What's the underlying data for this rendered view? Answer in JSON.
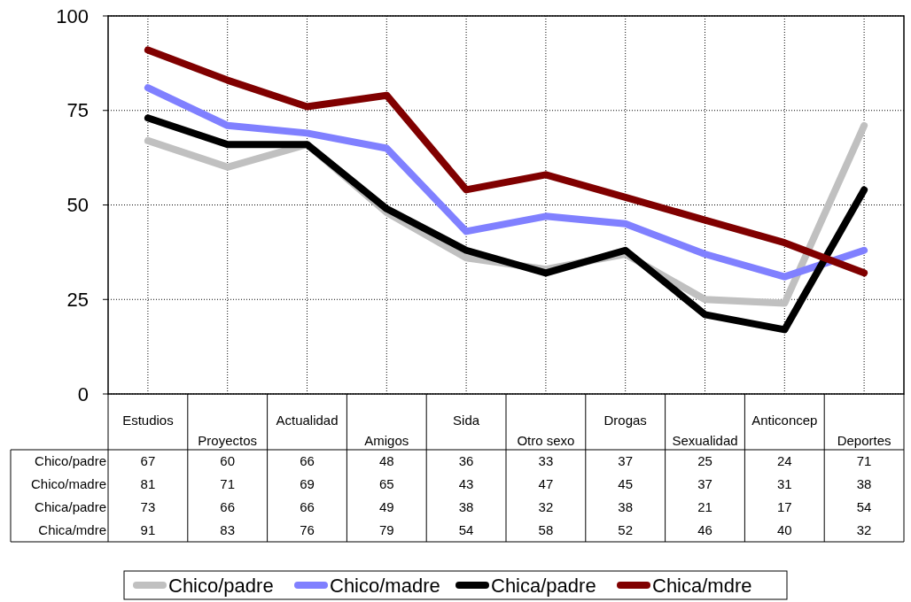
{
  "chart_data": {
    "type": "line",
    "categories": [
      "Estudios",
      "Proyectos",
      "Actualidad",
      "Amigos",
      "Sida",
      "Otro sexo",
      "Drogas",
      "Sexualidad",
      "Anticoncep",
      "Deportes"
    ],
    "series": [
      {
        "name": "Chico/padre",
        "color": "#c0c0c0",
        "values": [
          67,
          60,
          66,
          48,
          36,
          33,
          37,
          25,
          24,
          71
        ]
      },
      {
        "name": "Chico/madre",
        "color": "#8080ff",
        "values": [
          81,
          71,
          69,
          65,
          43,
          47,
          45,
          37,
          31,
          38
        ]
      },
      {
        "name": "Chica/padre",
        "color": "#000000",
        "values": [
          73,
          66,
          66,
          49,
          38,
          32,
          38,
          21,
          17,
          54
        ]
      },
      {
        "name": "Chica/mdre",
        "color": "#800000",
        "values": [
          91,
          83,
          76,
          79,
          54,
          58,
          52,
          46,
          40,
          32
        ]
      }
    ],
    "ylim": [
      0,
      100
    ],
    "yticks": [
      0,
      25,
      50,
      75,
      100
    ],
    "grid": true,
    "legend": "bottom",
    "data_labels": true,
    "marker": "none",
    "line_style": "solid"
  }
}
